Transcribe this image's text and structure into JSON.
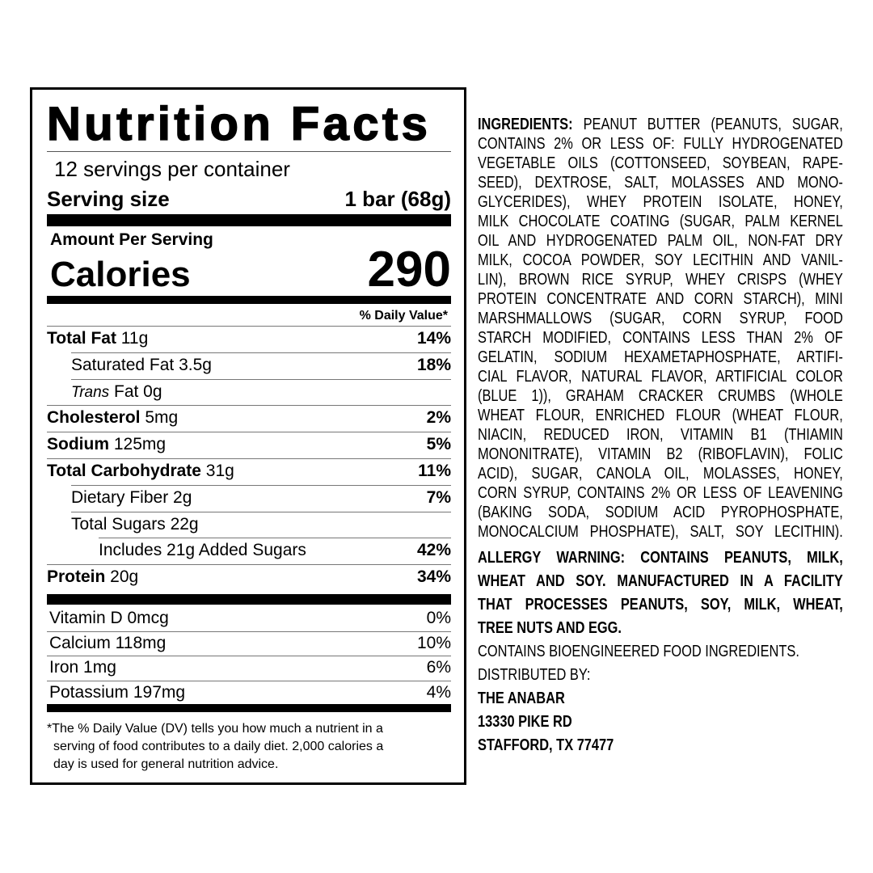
{
  "nutrition": {
    "title": "Nutrition Facts",
    "servings": "12 servings per container",
    "serving_size_label": "Serving size",
    "serving_size_value": "1 bar (68g)",
    "amount_per_serving": "Amount Per Serving",
    "calories_label": "Calories",
    "calories_value": "290",
    "dv_header": "% Daily Value*",
    "rows": [
      {
        "bold": "Total Fat",
        "text": " 11g",
        "dv": "14%"
      },
      {
        "bold": "",
        "text": "Saturated Fat 3.5g",
        "dv": "18%"
      },
      {
        "italic": "Trans",
        "text": " Fat 0g",
        "dv": ""
      },
      {
        "bold": "Cholesterol",
        "text": " 5mg",
        "dv": "2%"
      },
      {
        "bold": "Sodium",
        "text": " 125mg",
        "dv": "5%"
      },
      {
        "bold": "Total Carbohydrate",
        "text": " 31g",
        "dv": "11%"
      },
      {
        "bold": "",
        "text": "Dietary Fiber 2g",
        "dv": "7%"
      },
      {
        "bold": "",
        "text": "Total Sugars 22g",
        "dv": ""
      },
      {
        "bold": "",
        "text": "Includes 21g Added Sugars",
        "dv": "42%"
      },
      {
        "bold": "Protein",
        "text": " 20g",
        "dv": "34%"
      }
    ],
    "vitamins": [
      {
        "text": "Vitamin D 0mcg",
        "dv": "0%"
      },
      {
        "text": "Calcium 118mg",
        "dv": "10%"
      },
      {
        "text": "Iron 1mg",
        "dv": "6%"
      },
      {
        "text": "Potassium 197mg",
        "dv": "4%"
      }
    ],
    "footnote": [
      "The % Daily Value (DV) tells you how much a nutrient in a",
      "serving of food contributes to a daily diet. 2,000 calories a",
      "day is used for general nutrition advice."
    ],
    "footnote_mark": "*"
  },
  "ingredients": {
    "label": "INGREDIENTS:",
    "lines": [
      " PEANUT BUTTER (PEANUTS, SUGAR,",
      "CONTAINS 2% OR LESS OF: FULLY HYDROGENATED",
      "VEGETABLE OILS (COTTONSEED, SOYBEAN, RAPE-",
      "SEED), DEXTROSE, SALT, MOLASSES AND MONO-",
      "GLYCERIDES), WHEY PROTEIN ISOLATE, HONEY,",
      "MILK CHOCOLATE COATING (SUGAR, PALM KERNEL",
      "OIL AND HYDROGENATED PALM OIL, NON-FAT DRY",
      "MILK, COCOA POWDER, SOY LECITHIN AND VANIL-",
      "LIN), BROWN RICE SYRUP, WHEY CRISPS (WHEY",
      "PROTEIN CONCENTRATE AND CORN STARCH), MINI",
      "MARSHMALLOWS (SUGAR, CORN SYRUP, FOOD",
      "STARCH MODIFIED, CONTAINS LESS THAN 2% OF",
      "GELATIN, SODIUM HEXAMETAPHOSPHATE, ARTIFI-",
      "CIAL FLAVOR, NATURAL FLAVOR, ARTIFICIAL COLOR",
      "(BLUE 1)), GRAHAM CRACKER CRUMBS (WHOLE",
      "WHEAT FLOUR, ENRICHED FLOUR (WHEAT FLOUR,",
      "NIACIN, REDUCED IRON, VITAMIN B1 (THIAMIN",
      "MONONITRATE), VITAMIN B2 (RIBOFLAVIN), FOLIC",
      "ACID), SUGAR, CANOLA OIL, MOLASSES, HONEY,",
      "CORN SYRUP, CONTAINS 2% OR LESS OF LEAVENING",
      "(BAKING SODA, SODIUM ACID PYROPHOSPHATE,",
      "MONOCALCIUM PHOSPHATE), SALT, SOY LECITHIN)."
    ],
    "allergy_lines": [
      "ALLERGY WARNING: CONTAINS PEANUTS, MILK,",
      "WHEAT AND SOY. MANUFACTURED IN A FACILITY",
      "THAT PROCESSES PEANUTS, SOY, MILK, WHEAT,",
      "TREE NUTS AND EGG."
    ],
    "bioengineered": "CONTAINS BIOENGINEERED FOOD INGREDIENTS.",
    "distributed_by": "DISTRIBUTED BY:",
    "company": "THE ANABAR",
    "street": "13330 PIKE RD",
    "city": "STAFFORD, TX 77477"
  }
}
